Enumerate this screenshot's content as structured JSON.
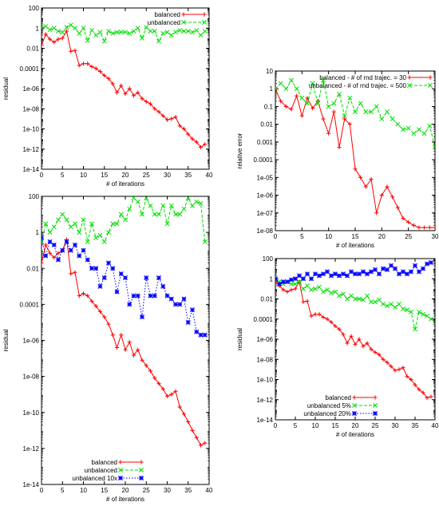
{
  "chart_data": [
    {
      "id": "top-left",
      "type": "line",
      "xlabel": "# of iterations",
      "ylabel": "residual",
      "xlim": [
        0,
        40
      ],
      "ylim": [
        1e-14,
        100
      ],
      "yscale": "log",
      "legend": "top-right",
      "x_ticks": [
        "0",
        "5",
        "10",
        "15",
        "20",
        "25",
        "30",
        "35",
        "40"
      ],
      "y_ticks": [
        "1e-14",
        "1e-12",
        "1e-10",
        "1e-08",
        "1e-06",
        "0.0001",
        "0.01",
        "1",
        "100"
      ],
      "series": [
        {
          "name": "balanced",
          "color": "#ff0000",
          "marker": "plus",
          "dash": "solid",
          "x": [
            0,
            1,
            2,
            3,
            4,
            5,
            6,
            7,
            8,
            9,
            10,
            11,
            12,
            13,
            14,
            15,
            16,
            17,
            18,
            19,
            20,
            21,
            22,
            23,
            24,
            25,
            26,
            27,
            28,
            29,
            30,
            31,
            32,
            33,
            34,
            35,
            36,
            37,
            38,
            39
          ],
          "y": [
            0.02,
            0.25,
            0.08,
            0.04,
            0.08,
            0.1,
            0.5,
            0.005,
            0.006,
            0.0002,
            0.0003,
            0.0003,
            0.00015,
            0.0001,
            5e-05,
            2e-05,
            1e-05,
            3e-06,
            4e-07,
            2e-06,
            3e-07,
            1e-06,
            2e-07,
            4e-07,
            1e-07,
            5e-08,
            3e-08,
            1e-08,
            5e-09,
            2e-09,
            8e-10,
            1e-09,
            1.5e-09,
            2e-10,
            1e-10,
            3e-11,
            1e-11,
            5e-12,
            1.5e-12,
            3e-12
          ]
        },
        {
          "name": "unbalanced",
          "color": "#00dd00",
          "marker": "x",
          "dash": "dashed",
          "x": [
            0,
            1,
            2,
            3,
            4,
            5,
            6,
            7,
            8,
            9,
            10,
            11,
            12,
            13,
            14,
            15,
            16,
            17,
            18,
            19,
            20,
            21,
            22,
            23,
            24,
            25,
            26,
            27,
            28,
            29,
            30,
            31,
            32,
            33,
            34,
            35,
            36,
            37,
            38,
            39
          ],
          "y": [
            1,
            1.5,
            0.7,
            1,
            0.5,
            0.4,
            1.2,
            2,
            1,
            0.3,
            1,
            0.06,
            0.6,
            0.2,
            0.4,
            0.05,
            0.5,
            0.3,
            0.4,
            0.4,
            0.4,
            0.3,
            0.5,
            1,
            0.1,
            1.2,
            0.5,
            0.5,
            0.05,
            0.3,
            0.4,
            0.2,
            0.4,
            0.6,
            0.5,
            0.5,
            0.4,
            0.6,
            0.2,
            0.5
          ]
        }
      ]
    },
    {
      "id": "top-right",
      "type": "line",
      "xlabel": "# of iterations",
      "ylabel": "relative error",
      "xlim": [
        0,
        30
      ],
      "ylim": [
        1e-08,
        10
      ],
      "yscale": "log",
      "legend": "top-right",
      "x_ticks": [
        "0",
        "5",
        "10",
        "15",
        "20",
        "25",
        "30"
      ],
      "y_ticks": [
        "1e-08",
        "1e-07",
        "1e-06",
        "1e-05",
        "0.0001",
        "0.001",
        "0.01",
        "0.1",
        "1",
        "10"
      ],
      "series": [
        {
          "name": "balanced - # of rnd trajec. = 30",
          "color": "#ff0000",
          "marker": "plus",
          "dash": "solid",
          "x": [
            0,
            1,
            2,
            3,
            4,
            5,
            6,
            7,
            8,
            9,
            10,
            11,
            12,
            13,
            14,
            15,
            16,
            17,
            18,
            19,
            20,
            21,
            22,
            23,
            24,
            25,
            26,
            27,
            28,
            29,
            30
          ],
          "y": [
            1,
            0.2,
            0.1,
            0.07,
            0.4,
            0.03,
            0.3,
            0.08,
            0.2,
            0.02,
            0.003,
            0.05,
            0.0005,
            0.02,
            0.01,
            3e-05,
            1e-05,
            3e-06,
            8e-06,
            1e-07,
            1e-06,
            3e-06,
            8e-07,
            2e-07,
            5e-08,
            3e-08,
            2e-08,
            1.5e-08,
            1.5e-08,
            1.5e-08,
            1.5e-08
          ]
        },
        {
          "name": "unbalanced - # of rnd trajec. = 500",
          "color": "#00dd00",
          "marker": "x",
          "dash": "dashed",
          "x": [
            0,
            1,
            2,
            3,
            4,
            5,
            6,
            7,
            8,
            9,
            10,
            11,
            12,
            13,
            14,
            15,
            16,
            17,
            18,
            19,
            20,
            21,
            22,
            23,
            24,
            25,
            26,
            27,
            28,
            29,
            30
          ],
          "y": [
            1,
            2,
            1,
            3,
            1,
            0.3,
            0.15,
            2,
            0.15,
            3,
            0.1,
            0.15,
            0.5,
            0.03,
            0.3,
            0.05,
            0.15,
            0.05,
            0.05,
            0.1,
            0.02,
            0.05,
            0.02,
            0.01,
            0.005,
            0.006,
            0.003,
            0.005,
            0.003,
            0.008,
            0.0005
          ]
        }
      ]
    },
    {
      "id": "bottom-left",
      "type": "line",
      "xlabel": "# of iterations",
      "ylabel": "residual",
      "xlim": [
        0,
        40
      ],
      "ylim": [
        1e-14,
        100
      ],
      "yscale": "log",
      "legend": "bottom-left",
      "x_ticks": [
        "0",
        "5",
        "10",
        "15",
        "20",
        "25",
        "30",
        "35",
        "40"
      ],
      "y_ticks": [
        "1e-14",
        "1e-12",
        "1e-10",
        "1e-08",
        "1e-06",
        "0.0001",
        "0.01",
        "1",
        "100"
      ],
      "series": [
        {
          "name": "balanced",
          "color": "#ff0000",
          "marker": "plus",
          "dash": "solid",
          "x": [
            0,
            1,
            2,
            3,
            4,
            5,
            6,
            7,
            8,
            9,
            10,
            11,
            12,
            13,
            14,
            15,
            16,
            17,
            18,
            19,
            20,
            21,
            22,
            23,
            24,
            25,
            26,
            27,
            28,
            29,
            30,
            31,
            32,
            33,
            34,
            35,
            36,
            37,
            38,
            39
          ],
          "y": [
            0.02,
            0.2,
            0.07,
            0.04,
            0.07,
            0.1,
            0.4,
            0.005,
            0.006,
            0.0003,
            0.0004,
            0.0003,
            0.00015,
            8e-05,
            4e-05,
            2e-05,
            8e-06,
            2e-06,
            4e-07,
            2e-06,
            3e-07,
            8e-07,
            1.5e-07,
            3e-07,
            8e-08,
            4e-08,
            2e-08,
            8e-09,
            4e-09,
            2e-09,
            8e-10,
            1e-09,
            1.5e-09,
            2e-10,
            8e-11,
            3e-11,
            1e-11,
            4e-12,
            1.5e-12,
            2e-12
          ]
        },
        {
          "name": "unbalanced",
          "color": "#00dd00",
          "marker": "x",
          "dash": "dashed",
          "x": [
            0,
            1,
            2,
            3,
            4,
            5,
            6,
            7,
            8,
            9,
            10,
            11,
            12,
            13,
            14,
            15,
            16,
            17,
            18,
            19,
            20,
            21,
            22,
            23,
            24,
            25,
            26,
            27,
            28,
            29,
            30,
            31,
            32,
            33,
            34,
            35,
            36,
            37,
            38,
            39
          ],
          "y": [
            0.3,
            3,
            1,
            2,
            5,
            10,
            5,
            2,
            3,
            1,
            5,
            0.3,
            3,
            0.5,
            0.7,
            0.3,
            1,
            3,
            3,
            10,
            5,
            20,
            80,
            50,
            10,
            80,
            30,
            10,
            10,
            30,
            3,
            30,
            10,
            10,
            20,
            80,
            30,
            50,
            40,
            0.3
          ]
        },
        {
          "name": "unbalanced 10x",
          "color": "#0000ff",
          "marker": "star",
          "dash": "dotted",
          "x": [
            0,
            1,
            2,
            3,
            4,
            5,
            6,
            7,
            8,
            9,
            10,
            11,
            12,
            13,
            14,
            15,
            16,
            17,
            18,
            19,
            20,
            21,
            22,
            23,
            24,
            25,
            26,
            27,
            28,
            29,
            30,
            31,
            32,
            33,
            34,
            35,
            36,
            37,
            38,
            39
          ],
          "y": [
            0.5,
            0.05,
            0.3,
            0.2,
            0.03,
            0.1,
            0.3,
            0.1,
            0.2,
            0.05,
            0.1,
            0.03,
            0.01,
            0.01,
            0.001,
            0.003,
            0.02,
            0.01,
            0.0005,
            0.005,
            0.003,
            0.0001,
            0.0003,
            0.0003,
            2e-05,
            0.003,
            0.0003,
            0.0003,
            0.003,
            0.001,
            0.0003,
            0.0002,
            0.0001,
            0.0001,
            0.0002,
            1e-05,
            5e-05,
            3e-06,
            2e-06,
            2e-06
          ]
        }
      ]
    },
    {
      "id": "bottom-right",
      "type": "line",
      "xlabel": "# of iterations",
      "ylabel": "residual",
      "xlim": [
        0,
        40
      ],
      "ylim": [
        1e-14,
        100
      ],
      "yscale": "log",
      "legend": "bottom-left",
      "x_ticks": [
        "0",
        "5",
        "10",
        "15",
        "20",
        "25",
        "30",
        "35",
        "40"
      ],
      "y_ticks": [
        "1e-14",
        "1e-12",
        "1e-10",
        "1e-08",
        "1e-06",
        "0.0001",
        "0.01",
        "1",
        "100"
      ],
      "series": [
        {
          "name": "balanced",
          "color": "#ff0000",
          "marker": "plus",
          "dash": "solid",
          "x": [
            0,
            1,
            2,
            3,
            4,
            5,
            6,
            7,
            8,
            9,
            10,
            11,
            12,
            13,
            14,
            15,
            16,
            17,
            18,
            19,
            20,
            21,
            22,
            23,
            24,
            25,
            26,
            27,
            28,
            29,
            30,
            31,
            32,
            33,
            34,
            35,
            36,
            37,
            38,
            39
          ],
          "y": [
            0.5,
            0.2,
            0.08,
            0.05,
            0.08,
            0.1,
            0.5,
            0.005,
            0.006,
            0.0002,
            0.0003,
            0.0003,
            0.00015,
            0.0001,
            5e-05,
            2e-05,
            1e-05,
            3e-06,
            4e-07,
            2e-06,
            3e-07,
            1e-06,
            2e-07,
            4e-07,
            1e-07,
            5e-08,
            3e-08,
            1e-08,
            5e-09,
            2e-09,
            8e-10,
            1e-09,
            1.5e-09,
            2e-10,
            1e-10,
            3e-11,
            1e-11,
            5e-12,
            1.5e-12,
            2e-12
          ]
        },
        {
          "name": "unbalanced 5%",
          "color": "#00dd00",
          "marker": "x",
          "dash": "dashed",
          "x": [
            0,
            1,
            2,
            3,
            4,
            5,
            6,
            7,
            8,
            9,
            10,
            11,
            12,
            13,
            14,
            15,
            16,
            17,
            18,
            19,
            20,
            21,
            22,
            23,
            24,
            25,
            26,
            27,
            28,
            29,
            30,
            31,
            32,
            33,
            34,
            35,
            36,
            37,
            38,
            39
          ],
          "y": [
            1,
            0.5,
            0.3,
            0.5,
            0.3,
            0.3,
            0.5,
            0.1,
            0.2,
            0.08,
            0.1,
            0.15,
            0.05,
            0.08,
            0.04,
            0.05,
            0.02,
            0.03,
            0.01,
            0.02,
            0.01,
            0.01,
            0.008,
            0.02,
            0.005,
            0.005,
            0.008,
            0.003,
            0.002,
            0.003,
            0.0015,
            0.003,
            0.001,
            0.0008,
            0.0005,
            1e-05,
            0.0005,
            0.0003,
            0.0002,
            0.0001
          ]
        },
        {
          "name": "unbalanced 20%",
          "color": "#0000ff",
          "marker": "star",
          "dash": "dotted",
          "x": [
            0,
            1,
            2,
            3,
            4,
            5,
            6,
            7,
            8,
            9,
            10,
            11,
            12,
            13,
            14,
            15,
            16,
            17,
            18,
            19,
            20,
            21,
            22,
            23,
            24,
            25,
            26,
            27,
            28,
            29,
            30,
            31,
            32,
            33,
            34,
            35,
            36,
            37,
            38,
            39
          ],
          "y": [
            1,
            0.3,
            0.5,
            0.5,
            0.8,
            1,
            2,
            1,
            3,
            1,
            3,
            2,
            3,
            5,
            2,
            3,
            2,
            3,
            2,
            5,
            3,
            3,
            5,
            3,
            5,
            8,
            3,
            10,
            8,
            20,
            10,
            3,
            5,
            3,
            5,
            20,
            5,
            10,
            30,
            40
          ]
        }
      ]
    }
  ]
}
